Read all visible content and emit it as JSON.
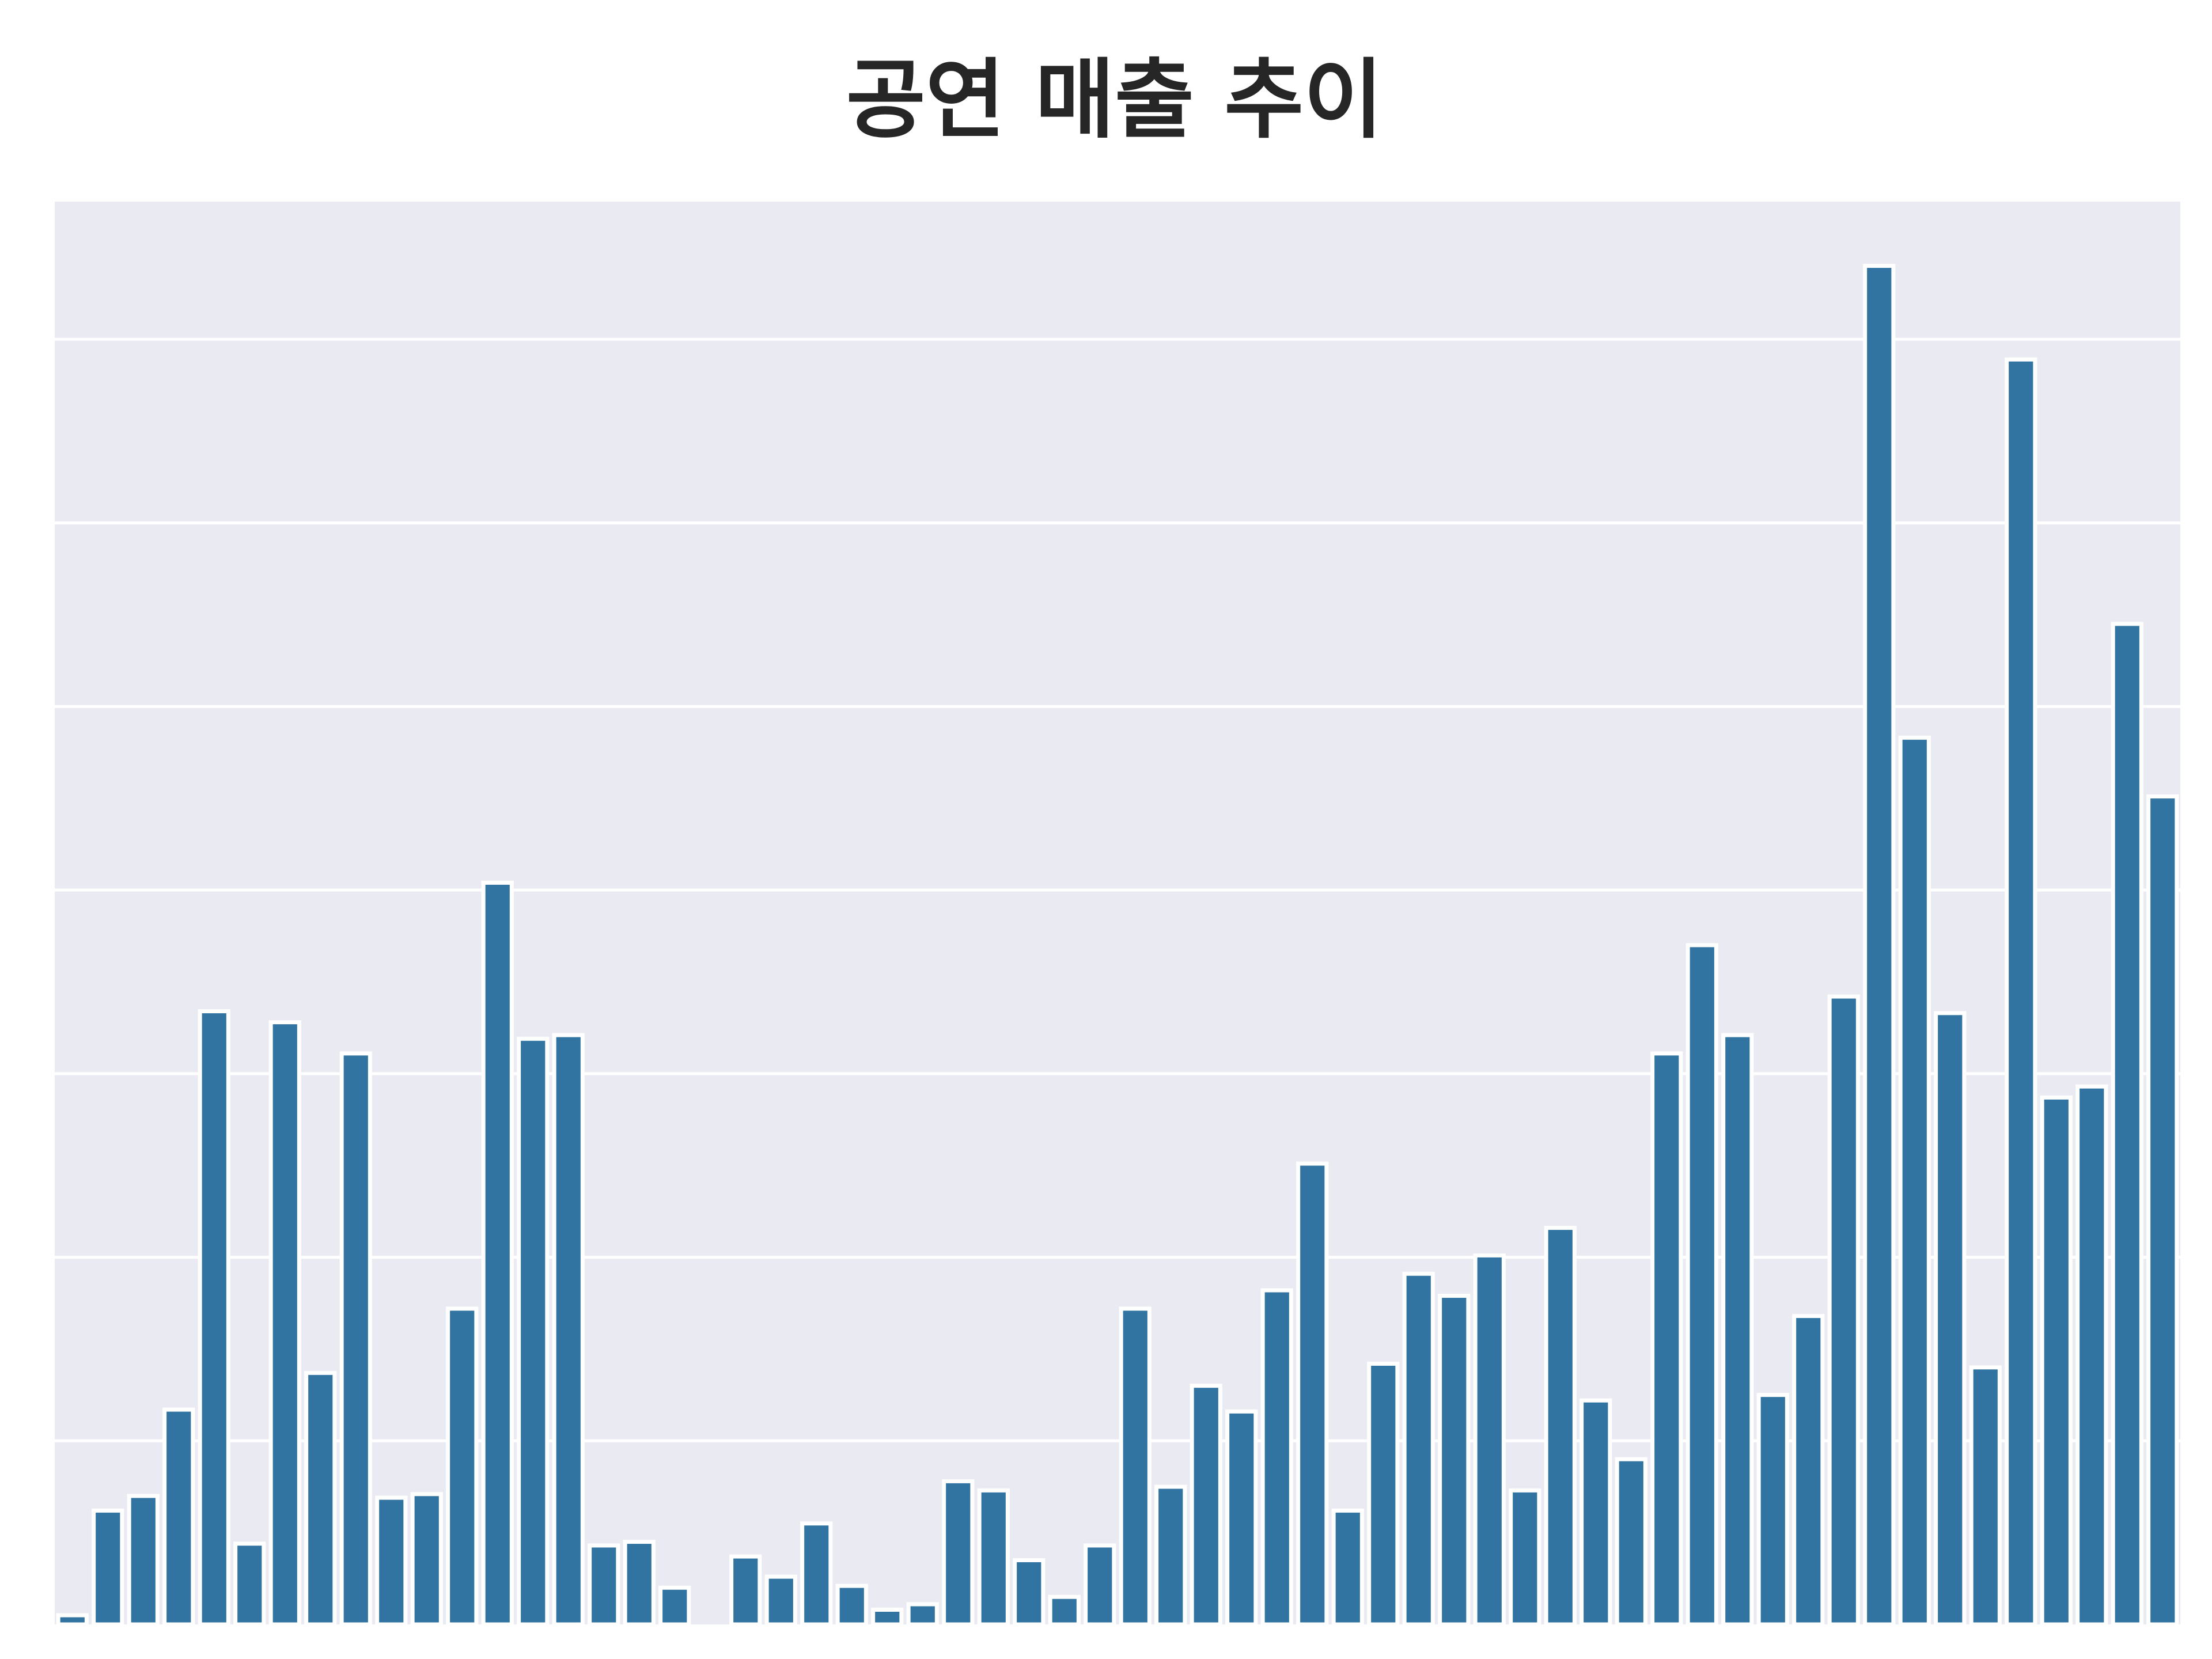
{
  "chart_data": {
    "type": "bar",
    "title": "공연 매출 추이",
    "xlabel": "",
    "ylabel": "",
    "ylim": [
      0,
      7.75
    ],
    "gridlines": [
      1,
      2,
      3,
      4,
      5,
      6,
      7
    ],
    "grid": true,
    "background": "#eaeaf2",
    "bar_color": "#3274a1",
    "values": [
      0.05,
      0.62,
      0.7,
      1.17,
      3.34,
      0.44,
      3.28,
      1.37,
      3.11,
      0.69,
      0.71,
      1.72,
      4.04,
      3.19,
      3.21,
      0.43,
      0.45,
      0.2,
      0.0,
      0.37,
      0.26,
      0.55,
      0.21,
      0.08,
      0.11,
      0.78,
      0.73,
      0.35,
      0.15,
      0.43,
      1.72,
      0.75,
      1.3,
      1.16,
      1.82,
      2.51,
      0.62,
      1.42,
      1.91,
      1.79,
      2.01,
      0.73,
      2.16,
      1.22,
      0.9,
      3.11,
      3.7,
      3.21,
      1.25,
      1.68,
      3.42,
      7.4,
      4.83,
      3.33,
      1.4,
      6.89,
      2.87,
      2.93,
      5.45,
      4.51
    ]
  }
}
